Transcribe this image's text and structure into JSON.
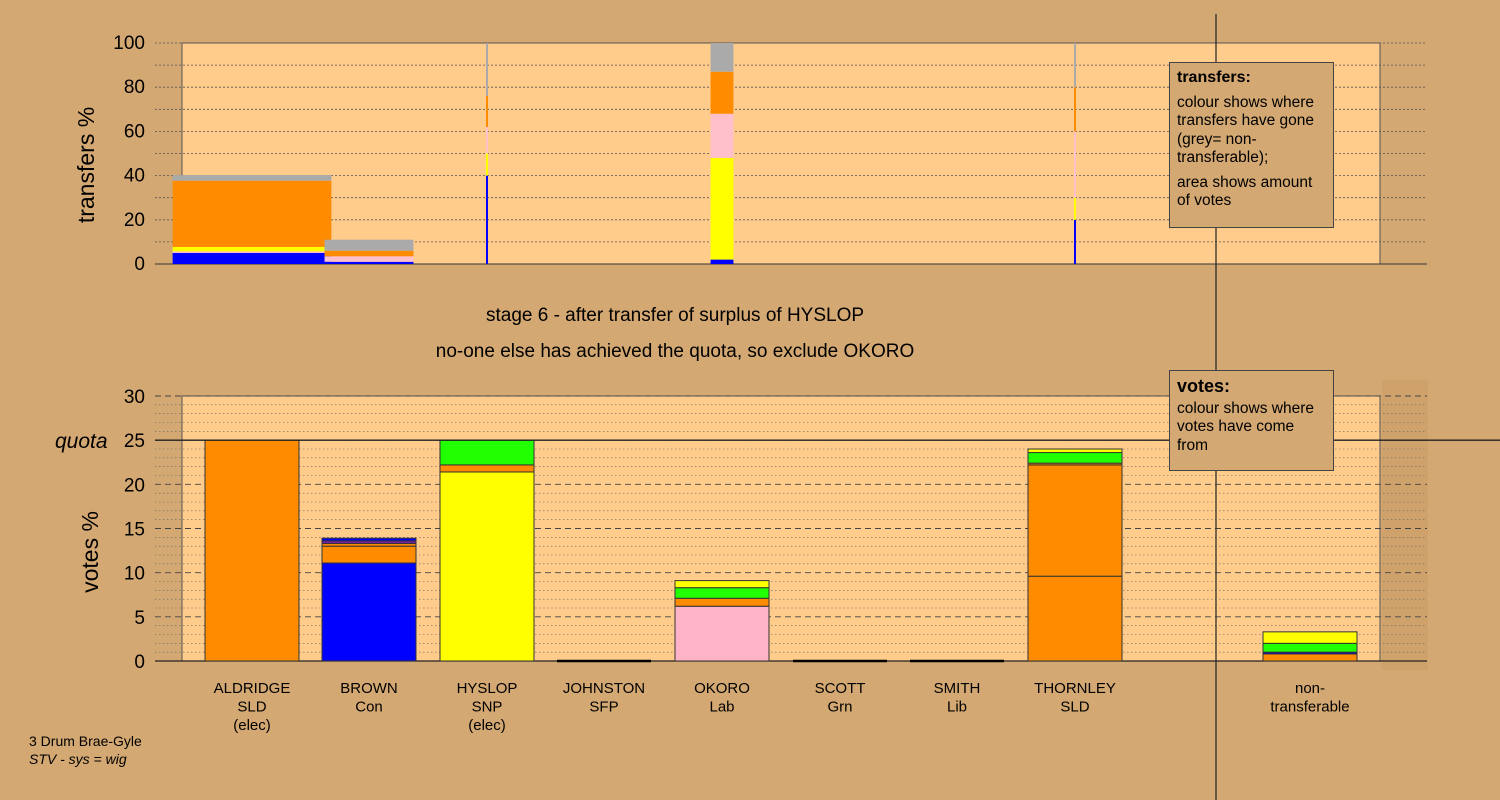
{
  "chart_data": [
    {
      "type": "bar",
      "ylabel": "transfers %",
      "ylim": [
        0,
        100
      ],
      "yticks": [
        0,
        20,
        40,
        60,
        80,
        100
      ],
      "categories": [
        "ALDRIDGE",
        "BROWN",
        "HYSLOP",
        "JOHNSTON",
        "OKORO",
        "SCOTT",
        "SMITH",
        "THORNLEY",
        "non-transferable"
      ],
      "note": "stacked transfer bars; bar width encodes amount of votes",
      "bars": [
        {
          "category": "ALDRIDGE",
          "width_votes": 12.5,
          "segments": [
            {
              "color": "#0000ff",
              "value": 5
            },
            {
              "color": "#ffc0cb",
              "value": 0.7
            },
            {
              "color": "#ffff00",
              "value": 2
            },
            {
              "color": "#ff8c00",
              "value": 30
            },
            {
              "color": "#aaaaaa",
              "value": 2.5
            }
          ]
        },
        {
          "category": "BROWN",
          "width_votes": 7,
          "segments": [
            {
              "color": "#0000ff",
              "value": 1
            },
            {
              "color": "#ffc0cb",
              "value": 2.5
            },
            {
              "color": "#ff8c00",
              "value": 2.5
            },
            {
              "color": "#aaaaaa",
              "value": 5
            }
          ]
        },
        {
          "category": "HYSLOP",
          "width_votes": 0.15,
          "segments": [
            {
              "color": "#0000ff",
              "value": 40
            },
            {
              "color": "#ffff00",
              "value": 10
            },
            {
              "color": "#ffc0cb",
              "value": 12
            },
            {
              "color": "#ff8c00",
              "value": 14
            },
            {
              "color": "#aaaaaa",
              "value": 24
            }
          ]
        },
        {
          "category": "OKORO",
          "width_votes": 1.8,
          "segments": [
            {
              "color": "#0000ff",
              "value": 2
            },
            {
              "color": "#ffff00",
              "value": 46
            },
            {
              "color": "#ffc0cb",
              "value": 20
            },
            {
              "color": "#ff8c00",
              "value": 19
            },
            {
              "color": "#aaaaaa",
              "value": 13
            }
          ]
        },
        {
          "category": "THORNLEY",
          "width_votes": 0.1,
          "segments": [
            {
              "color": "#0000ff",
              "value": 20
            },
            {
              "color": "#ffff00",
              "value": 10
            },
            {
              "color": "#ffc0cb",
              "value": 30
            },
            {
              "color": "#ff8c00",
              "value": 20
            },
            {
              "color": "#aaaaaa",
              "value": 20
            }
          ]
        }
      ]
    },
    {
      "type": "bar",
      "ylabel": "votes %",
      "ylim": [
        0,
        30
      ],
      "yticks": [
        0,
        5,
        10,
        15,
        20,
        25,
        30
      ],
      "quota": 25,
      "quota_label": "quota",
      "categories": [
        "ALDRIDGE",
        "BROWN",
        "HYSLOP",
        "JOHNSTON",
        "OKORO",
        "SCOTT",
        "SMITH",
        "THORNLEY",
        "non-transferable"
      ],
      "category_labels": [
        [
          "ALDRIDGE",
          "SLD",
          "(elec)"
        ],
        [
          "BROWN",
          "Con"
        ],
        [
          "HYSLOP",
          "SNP",
          "(elec)"
        ],
        [
          "JOHNSTON",
          "SFP"
        ],
        [
          "OKORO",
          "Lab"
        ],
        [
          "SCOTT",
          "Grn"
        ],
        [
          "SMITH",
          "Lib"
        ],
        [
          "THORNLEY",
          "SLD"
        ],
        [
          "non-",
          "transferable"
        ]
      ],
      "stacks": [
        {
          "category": "ALDRIDGE",
          "segments": [
            {
              "color": "#ff8c00",
              "value": 25
            }
          ]
        },
        {
          "category": "BROWN",
          "segments": [
            {
              "color": "#0000ff",
              "value": 11.1
            },
            {
              "color": "#ff8c00",
              "value": 1.9
            },
            {
              "color": "#ff8c00",
              "value": 0.3
            },
            {
              "color": "#7b1fa2",
              "value": 0.3
            },
            {
              "color": "#0000ff",
              "value": 0.3
            }
          ]
        },
        {
          "category": "HYSLOP",
          "segments": [
            {
              "color": "#ffff00",
              "value": 21.4
            },
            {
              "color": "#ff8c00",
              "value": 0.8
            },
            {
              "color": "#22ff00",
              "value": 2.8
            }
          ]
        },
        {
          "category": "JOHNSTON",
          "segments": []
        },
        {
          "category": "OKORO",
          "segments": [
            {
              "color": "#ffb3c6",
              "value": 6.2
            },
            {
              "color": "#ff8c00",
              "value": 0.9
            },
            {
              "color": "#22ff00",
              "value": 1.2
            },
            {
              "color": "#ffff00",
              "value": 0.8
            }
          ]
        },
        {
          "category": "SCOTT",
          "segments": []
        },
        {
          "category": "SMITH",
          "segments": []
        },
        {
          "category": "THORNLEY",
          "segments": [
            {
              "color": "#ff8c00",
              "value": 9.6
            },
            {
              "color": "#ff8c00",
              "value": 12.6
            },
            {
              "color": "#ff8c00",
              "value": 0.2
            },
            {
              "color": "#22ff00",
              "value": 1.2
            },
            {
              "color": "#ffff00",
              "value": 0.4
            }
          ]
        },
        {
          "category": "non-transferable",
          "segments": [
            {
              "color": "#ff8c00",
              "value": 0.8
            },
            {
              "color": "#0000ff",
              "value": 0.2
            },
            {
              "color": "#22ff00",
              "value": 1.0
            },
            {
              "color": "#ffff00",
              "value": 1.3
            }
          ]
        }
      ]
    }
  ],
  "colors": {
    "background": "#d4a872",
    "plot_background": "#ffcc8c"
  },
  "legend_transfers": {
    "title": "transfers:",
    "line1": "colour shows where transfers have gone (grey= non-transferable);",
    "line2": "area shows amount of votes"
  },
  "legend_votes": {
    "title": "votes:",
    "line1": "colour shows where votes have come from"
  },
  "caption": {
    "line1": "stage 6 - after transfer of surplus of HYSLOP",
    "line2": "no-one else has achieved the quota, so exclude OKORO"
  },
  "footer": {
    "line1": "3 Drum Brae-Gyle",
    "line2": "STV - sys = wig"
  }
}
